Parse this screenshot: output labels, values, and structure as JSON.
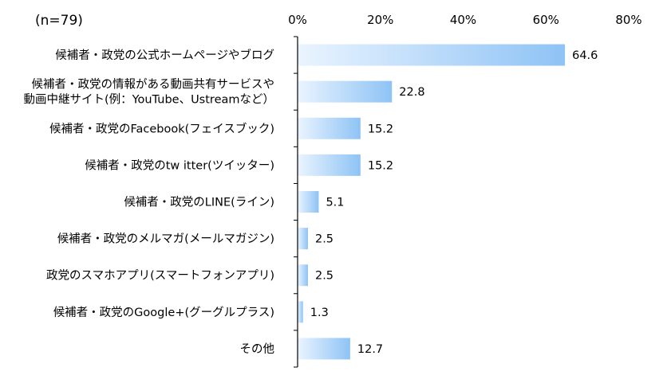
{
  "chart_data": {
    "type": "bar",
    "orientation": "horizontal",
    "note": "(n=79)",
    "categories": [
      [
        "候補者・政党の公式ホームページやブログ"
      ],
      [
        "候補者・政党の情報がある動画共有サービスや",
        "動画中継サイト(例：YouTube、Ustreamなど）"
      ],
      [
        "候補者・政党のFacebook(フェイスブック)"
      ],
      [
        "候補者・政党のtw itter(ツイッター)"
      ],
      [
        "候補者・政党のLINE(ライン)"
      ],
      [
        "候補者・政党のメルマガ(メールマガジン)"
      ],
      [
        "政党のスマホアプリ(スマートフォンアプリ)"
      ],
      [
        "候補者・政党のGoogle+(グーグルプラス)"
      ],
      [
        "その他"
      ]
    ],
    "values": [
      64.6,
      22.8,
      15.2,
      15.2,
      5.1,
      2.5,
      2.5,
      1.3,
      12.7
    ],
    "value_labels": [
      "64.6",
      "22.8",
      "15.2",
      "15.2",
      "5.1",
      "2.5",
      "2.5",
      "1.3",
      "12.7"
    ],
    "xlim": [
      0,
      80
    ],
    "ticks": [
      "0%",
      "20%",
      "40%",
      "60%",
      "80%"
    ],
    "tick_values": [
      0,
      20,
      40,
      60,
      80
    ],
    "grid": false,
    "colors": {
      "bar_light": "#eaf4ff",
      "bar_dark": "#8ec3f5",
      "axis": "#000000"
    }
  }
}
